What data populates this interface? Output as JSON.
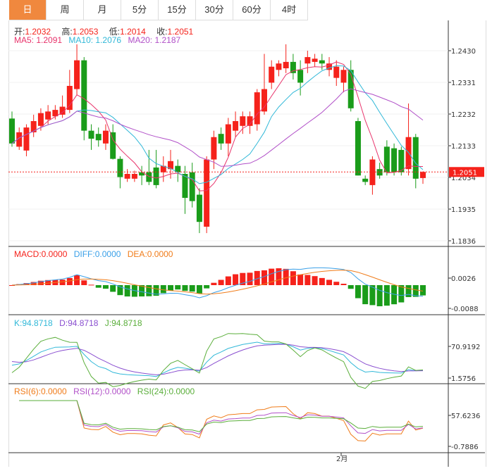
{
  "tabs": [
    "日",
    "周",
    "月",
    "5分",
    "15分",
    "30分",
    "60分",
    "4时"
  ],
  "active_tab": 0,
  "ohlc_info": {
    "open_label": "开:",
    "open": "1.2032",
    "high_label": "高:",
    "high": "1.2053",
    "low_label": "低:",
    "low": "1.2014",
    "close_label": "收:",
    "close": "1.2051"
  },
  "ma_info": {
    "ma5": "MA5: 1.2091",
    "ma10": "MA10: 1.2076",
    "ma20": "MA20: 1.2187"
  },
  "macd_info": {
    "macd": "MACD:0.0000",
    "diff": "DIFF:0.0000",
    "dea": "DEA:0.0000"
  },
  "kdj_info": {
    "k": "K:94.8718",
    "d": "D:94.8718",
    "j": "J:94.8718"
  },
  "rsi_info": {
    "rsi6": "RSI(6):0.0000",
    "rsi12": "RSI(12):0.0000",
    "rsi24": "RSI(24):0.0000"
  },
  "last_price": "1.2051",
  "x_label": "2月",
  "colors": {
    "up": "#f5221b",
    "down": "#1a9c1a",
    "ma5": "#e8336b",
    "ma10": "#31b8d8",
    "ma20": "#b150c8",
    "tab_active": "#f0883e",
    "diff": "#3aa0e8",
    "dea": "#f07c1a"
  },
  "chart_data": {
    "type": "candlestick",
    "price_ticks": [
      "1.2430",
      "1.2331",
      "1.2232",
      "1.2133",
      "1.2034",
      "1.1935",
      "1.1836"
    ],
    "price_range": [
      1.1836,
      1.243
    ],
    "macd_ticks": [
      "0.0026",
      "-0.0088"
    ],
    "kdj_ticks": [
      "70.9192",
      "1.5756"
    ],
    "rsi_ticks": [
      "57.6236",
      "-0.7886"
    ],
    "ohlc": [
      [
        1.2218,
        1.224,
        1.213,
        1.214
      ],
      [
        1.213,
        1.219,
        1.212,
        1.2175
      ],
      [
        1.2118,
        1.22,
        1.21,
        1.219
      ],
      [
        1.2175,
        1.223,
        1.216,
        1.221
      ],
      [
        1.2195,
        1.225,
        1.218,
        1.2235
      ],
      [
        1.2215,
        1.226,
        1.22,
        1.224
      ],
      [
        1.2225,
        1.226,
        1.2215,
        1.2245
      ],
      [
        1.223,
        1.229,
        1.222,
        1.2255
      ],
      [
        1.2245,
        1.237,
        1.2235,
        1.232
      ],
      [
        1.231,
        1.245,
        1.229,
        1.24
      ],
      [
        1.24,
        1.241,
        1.215,
        1.218
      ],
      [
        1.218,
        1.22,
        1.212,
        1.2155
      ],
      [
        1.217,
        1.219,
        1.213,
        1.215
      ],
      [
        1.214,
        1.22,
        1.212,
        1.218
      ],
      [
        1.2175,
        1.22,
        1.209,
        1.2092
      ],
      [
        1.2092,
        1.21,
        1.2,
        1.2035
      ],
      [
        1.203,
        1.206,
        1.202,
        1.2045
      ],
      [
        1.203,
        1.2055,
        1.202,
        1.2045
      ],
      [
        1.205,
        1.207,
        1.201,
        1.204
      ],
      [
        1.205,
        1.212,
        1.201,
        1.202
      ],
      [
        1.2065,
        1.212,
        1.2,
        1.201
      ],
      [
        1.205,
        1.21,
        1.202,
        1.207
      ],
      [
        1.206,
        1.212,
        1.203,
        1.2085
      ],
      [
        1.207,
        1.209,
        1.202,
        1.205
      ],
      [
        1.2045,
        1.207,
        1.192,
        1.197
      ],
      [
        1.205,
        1.208,
        1.194,
        1.196
      ],
      [
        1.198,
        1.2,
        1.186,
        1.1895
      ],
      [
        1.188,
        1.21,
        1.186,
        1.209
      ],
      [
        1.209,
        1.218,
        1.206,
        1.216
      ],
      [
        1.217,
        1.219,
        1.212,
        1.214
      ],
      [
        1.214,
        1.222,
        1.21,
        1.22
      ],
      [
        1.218,
        1.224,
        1.216,
        1.221
      ],
      [
        1.2195,
        1.224,
        1.217,
        1.2225
      ],
      [
        1.2195,
        1.224,
        1.217,
        1.2225
      ],
      [
        1.22,
        1.231,
        1.218,
        1.23
      ],
      [
        1.224,
        1.242,
        1.223,
        1.231
      ],
      [
        1.233,
        1.24,
        1.231,
        1.238
      ],
      [
        1.237,
        1.24,
        1.235,
        1.239
      ],
      [
        1.2375,
        1.245,
        1.236,
        1.2395
      ],
      [
        1.2395,
        1.242,
        1.234,
        1.236
      ],
      [
        1.237,
        1.24,
        1.229,
        1.233
      ],
      [
        1.239,
        1.243,
        1.236,
        1.241
      ],
      [
        1.2395,
        1.242,
        1.238,
        1.2405
      ],
      [
        1.24,
        1.242,
        1.237,
        1.239
      ],
      [
        1.237,
        1.241,
        1.235,
        1.239
      ],
      [
        1.2345,
        1.24,
        1.232,
        1.238
      ],
      [
        1.233,
        1.238,
        1.23,
        1.237
      ],
      [
        1.237,
        1.24,
        1.224,
        1.225
      ],
      [
        1.221,
        1.222,
        1.204,
        1.204
      ],
      [
        1.203,
        1.204,
        1.201,
        1.202
      ],
      [
        1.201,
        1.21,
        1.198,
        1.209
      ],
      [
        1.206,
        1.208,
        1.203,
        1.204
      ],
      [
        1.213,
        1.215,
        1.204,
        1.205
      ],
      [
        1.2125,
        1.214,
        1.204,
        1.205
      ],
      [
        1.212,
        1.213,
        1.204,
        1.205
      ],
      [
        1.206,
        1.2265,
        1.204,
        1.216
      ],
      [
        1.216,
        1.217,
        1.2,
        1.203
      ],
      [
        1.2032,
        1.2053,
        1.2014,
        1.2051
      ]
    ]
  }
}
